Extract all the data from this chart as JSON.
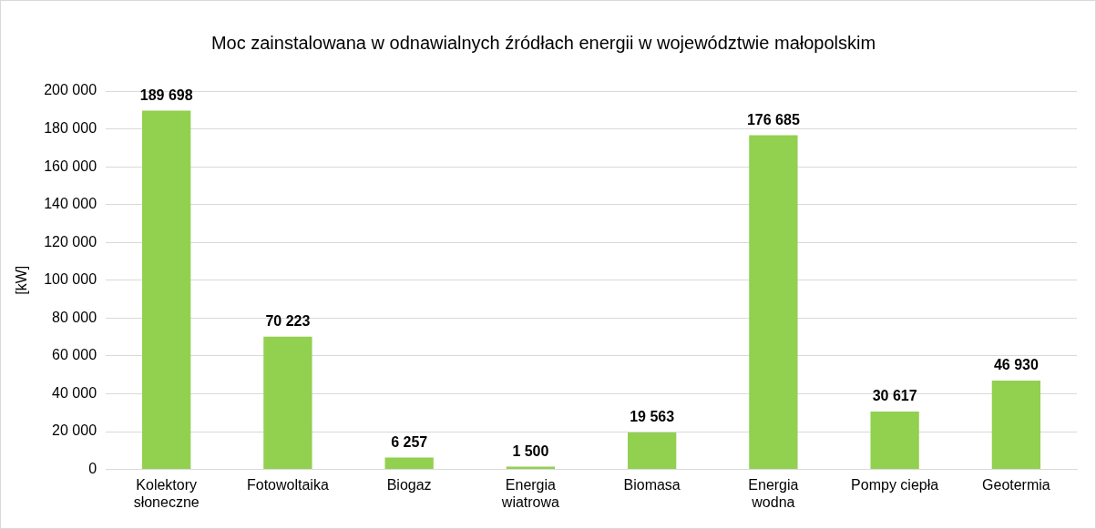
{
  "chart_data": {
    "type": "bar",
    "title": "Moc zainstalowana w odnawialnych źródłach energii w województwie małopolskim",
    "ylabel": "[kW]",
    "categories": [
      "Kolektory słoneczne",
      "Fotowoltaika",
      "Biogaz",
      "Energia wiatrowa",
      "Biomasa",
      "Energia wodna",
      "Pompy ciepła",
      "Geotermia"
    ],
    "values": [
      189698,
      70223,
      6257,
      1500,
      19563,
      176685,
      30617,
      46930
    ],
    "value_labels": [
      "189 698",
      "70 223",
      "6 257",
      "1 500",
      "19 563",
      "176 685",
      "30 617",
      "46 930"
    ],
    "color": "#92d050",
    "ylim": [
      0,
      200000
    ],
    "yticks": [
      0,
      {
        "value": 20000,
        "label": "20 000"
      },
      {
        "value": 40000,
        "label": "40 000"
      },
      {
        "value": 60000,
        "label": "60 000"
      },
      {
        "value": 80000,
        "label": "80 000"
      },
      {
        "value": 100000,
        "label": "100 000"
      },
      {
        "value": 120000,
        "label": "120 000"
      },
      {
        "value": 140000,
        "label": "140 000"
      },
      {
        "value": 160000,
        "label": "160 000"
      },
      {
        "value": 180000,
        "label": "180 000"
      },
      {
        "value": 200000,
        "label": "200 000"
      }
    ],
    "grid": "y",
    "legend": false
  }
}
